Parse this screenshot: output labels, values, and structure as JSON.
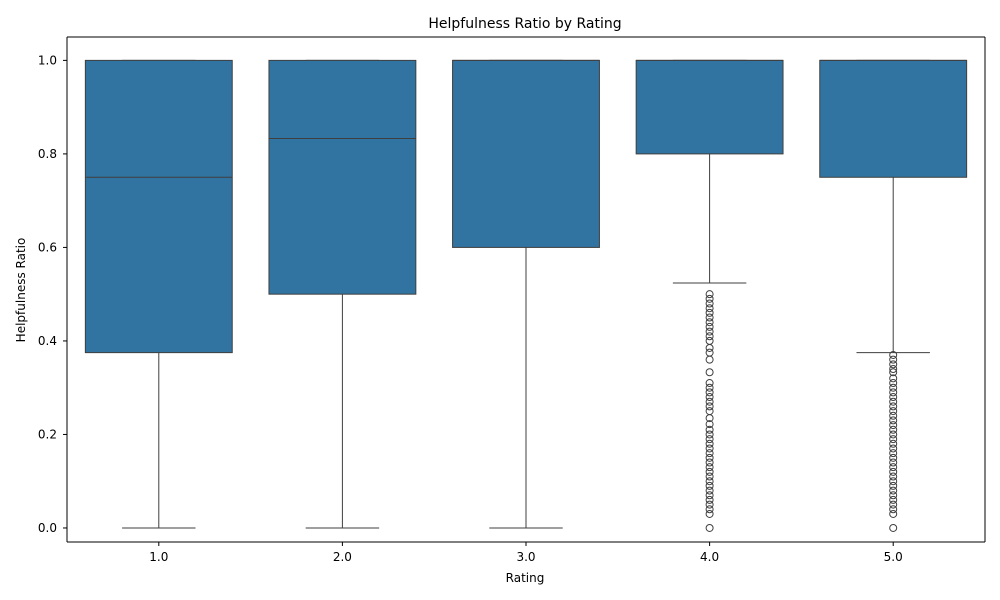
{
  "chart_data": {
    "type": "box",
    "title": "Helpfulness Ratio by Rating",
    "xlabel": "Rating",
    "ylabel": "Helpfulness Ratio",
    "categories": [
      "1.0",
      "2.0",
      "3.0",
      "4.0",
      "5.0"
    ],
    "ylim": [
      -0.03,
      1.05
    ],
    "yticks": [
      0.0,
      0.2,
      0.4,
      0.6,
      0.8,
      1.0
    ],
    "ytick_labels": [
      "0.0",
      "0.2",
      "0.4",
      "0.6",
      "0.8",
      "1.0"
    ],
    "box_color": "#3274a1",
    "line_color": "#3f3f3f",
    "boxes": [
      {
        "category": "1.0",
        "whisker_low": 0.0,
        "q1": 0.375,
        "median": 0.75,
        "q3": 1.0,
        "whisker_high": 1.0,
        "outliers": []
      },
      {
        "category": "2.0",
        "whisker_low": 0.0,
        "q1": 0.5,
        "median": 0.833,
        "q3": 1.0,
        "whisker_high": 1.0,
        "outliers": []
      },
      {
        "category": "3.0",
        "whisker_low": 0.0,
        "q1": 0.6,
        "median": 1.0,
        "q3": 1.0,
        "whisker_high": 1.0,
        "outliers": []
      },
      {
        "category": "4.0",
        "whisker_low": 0.524,
        "q1": 0.8,
        "median": 1.0,
        "q3": 1.0,
        "whisker_high": 1.0,
        "outliers": [
          0.5,
          0.49,
          0.48,
          0.47,
          0.46,
          0.45,
          0.44,
          0.43,
          0.42,
          0.41,
          0.4,
          0.385,
          0.375,
          0.36,
          0.333,
          0.31,
          0.3,
          0.29,
          0.28,
          0.27,
          0.26,
          0.25,
          0.235,
          0.222,
          0.21,
          0.2,
          0.19,
          0.18,
          0.17,
          0.16,
          0.15,
          0.14,
          0.13,
          0.12,
          0.11,
          0.1,
          0.09,
          0.08,
          0.07,
          0.06,
          0.05,
          0.04,
          0.03,
          0.0
        ]
      },
      {
        "category": "5.0",
        "whisker_low": 0.375,
        "q1": 0.75,
        "median": 1.0,
        "q3": 1.0,
        "whisker_high": 1.0,
        "outliers": [
          0.37,
          0.36,
          0.35,
          0.34,
          0.333,
          0.32,
          0.31,
          0.3,
          0.29,
          0.28,
          0.27,
          0.26,
          0.25,
          0.24,
          0.23,
          0.22,
          0.21,
          0.2,
          0.19,
          0.18,
          0.17,
          0.16,
          0.15,
          0.14,
          0.13,
          0.12,
          0.11,
          0.1,
          0.09,
          0.08,
          0.07,
          0.06,
          0.05,
          0.04,
          0.03,
          0.0
        ]
      }
    ]
  }
}
